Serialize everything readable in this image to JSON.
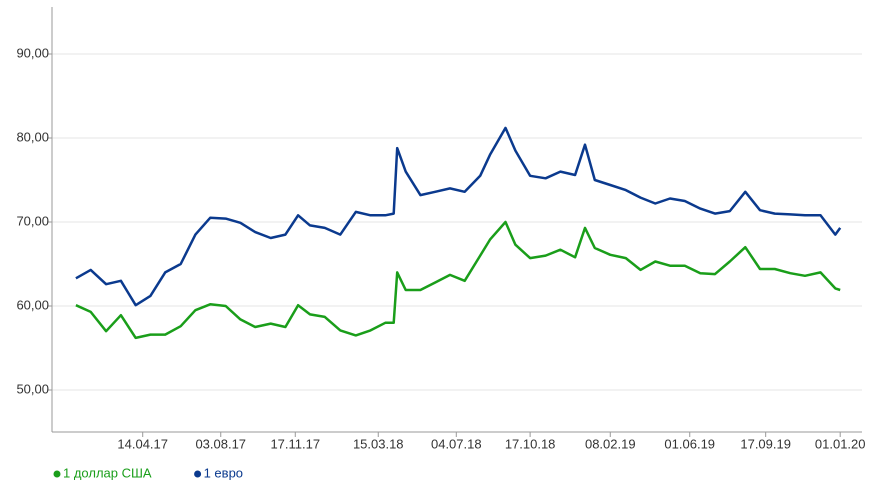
{
  "chart_data": {
    "type": "line",
    "x": [
      "09.01.17",
      "30.01.17",
      "21.02.17",
      "14.03.17",
      "04.04.17",
      "25.04.17",
      "16.05.17",
      "07.06.17",
      "28.06.17",
      "19.07.17",
      "10.08.17",
      "31.08.17",
      "21.09.17",
      "13.10.17",
      "03.11.17",
      "21.11.17",
      "08.12.17",
      "29.12.17",
      "20.01.18",
      "11.02.18",
      "04.03.18",
      "25.03.18",
      "06.04.18",
      "11.04.18",
      "23.04.18",
      "14.05.18",
      "04.06.18",
      "25.06.18",
      "16.07.18",
      "07.08.18",
      "21.08.18",
      "12.09.18",
      "26.09.18",
      "17.10.18",
      "08.11.18",
      "29.11.18",
      "20.12.18",
      "03.01.19",
      "17.01.19",
      "08.02.19",
      "02.03.19",
      "23.03.19",
      "13.04.19",
      "04.05.19",
      "25.05.19",
      "16.06.19",
      "07.07.19",
      "28.07.19",
      "19.08.19",
      "09.09.19",
      "30.09.19",
      "22.10.19",
      "12.11.19",
      "04.12.19",
      "25.12.19",
      "01.01.20"
    ],
    "series": [
      {
        "name": "1 доллар США",
        "color": "#1a9e1a",
        "values": [
          60.1,
          59.3,
          57.0,
          58.9,
          56.2,
          56.6,
          56.6,
          57.6,
          59.5,
          60.2,
          60.0,
          58.4,
          57.5,
          57.9,
          57.5,
          60.1,
          59.0,
          58.7,
          57.1,
          56.5,
          57.1,
          58.0,
          58.0,
          64.0,
          61.9,
          61.9,
          62.8,
          63.7,
          63.0,
          66.0,
          67.9,
          70.0,
          67.3,
          65.7,
          66.0,
          66.7,
          65.8,
          69.3,
          66.9,
          66.1,
          65.7,
          64.3,
          65.3,
          64.8,
          64.8,
          63.9,
          63.8,
          65.3,
          67.0,
          64.4,
          64.4,
          63.9,
          63.6,
          64.0,
          62.1,
          61.9
        ]
      },
      {
        "name": "1 евро",
        "color": "#0b3a8e",
        "values": [
          63.3,
          64.3,
          62.6,
          63.0,
          60.1,
          61.2,
          64.0,
          65.0,
          68.5,
          70.5,
          70.4,
          69.9,
          68.8,
          68.1,
          68.5,
          70.8,
          69.6,
          69.3,
          68.5,
          71.2,
          70.8,
          70.8,
          71.0,
          78.8,
          76.0,
          73.2,
          73.6,
          74.0,
          73.6,
          75.5,
          78.0,
          81.2,
          78.5,
          75.5,
          75.2,
          76.0,
          75.6,
          79.2,
          75.0,
          74.4,
          73.8,
          72.9,
          72.2,
          72.8,
          72.5,
          71.6,
          71.0,
          71.3,
          73.6,
          71.4,
          71.0,
          70.9,
          70.8,
          70.8,
          68.5,
          69.3
        ]
      }
    ],
    "xlim": [
      "06.12.16",
      "01.02.20"
    ],
    "xticks": [
      "14.04.17",
      "03.08.17",
      "17.11.17",
      "15.03.18",
      "04.07.18",
      "17.10.18",
      "08.02.19",
      "01.06.19",
      "17.09.19",
      "01.01.20"
    ],
    "ylim": [
      45,
      95
    ],
    "yticks": [
      {
        "value": 50,
        "label": "50,00"
      },
      {
        "value": 60,
        "label": "60,00"
      },
      {
        "value": 70,
        "label": "70,00"
      },
      {
        "value": 80,
        "label": "80,00"
      },
      {
        "value": 90,
        "label": "90,00"
      }
    ],
    "grid": true
  }
}
